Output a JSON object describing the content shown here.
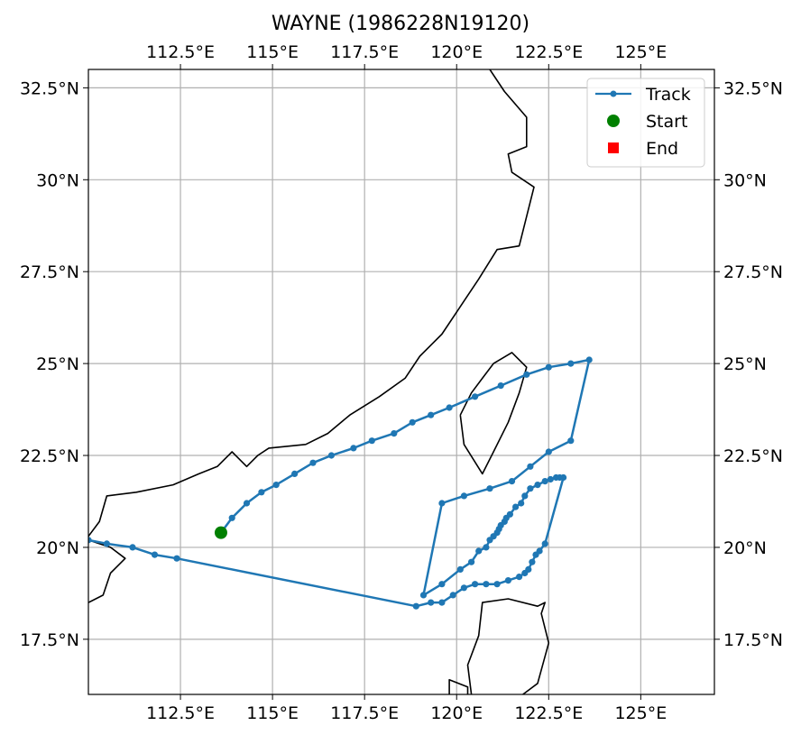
{
  "chart_data": {
    "type": "map-track",
    "title": "WAYNE (1986228N19120)",
    "xlim": [
      110,
      127
    ],
    "ylim": [
      16,
      33
    ],
    "xticks": [
      {
        "value": 112.5,
        "label": "112.5°E"
      },
      {
        "value": 115,
        "label": "115°E"
      },
      {
        "value": 117.5,
        "label": "117.5°E"
      },
      {
        "value": 120,
        "label": "120°E"
      },
      {
        "value": 122.5,
        "label": "122.5°E"
      },
      {
        "value": 125,
        "label": "125°E"
      }
    ],
    "yticks": [
      {
        "value": 17.5,
        "label": "17.5°N"
      },
      {
        "value": 20,
        "label": "20°N"
      },
      {
        "value": 22.5,
        "label": "22.5°N"
      },
      {
        "value": 25,
        "label": "25°N"
      },
      {
        "value": 27.5,
        "label": "27.5°N"
      },
      {
        "value": 30,
        "label": "30°N"
      },
      {
        "value": 32.5,
        "label": "32.5°N"
      }
    ],
    "grid": true,
    "legend": {
      "placement": "top-right",
      "entries": [
        {
          "label": "Track",
          "marker": "line-dot",
          "color": "#1f77b4"
        },
        {
          "label": "Start",
          "marker": "circle",
          "color": "#008000"
        },
        {
          "label": "End",
          "marker": "square",
          "color": "#ff0000"
        }
      ]
    },
    "track_color": "#1f77b4",
    "start": {
      "lon": 113.6,
      "lat": 20.4,
      "color": "#008000"
    },
    "track": [
      [
        113.6,
        20.4
      ],
      [
        113.9,
        20.8
      ],
      [
        114.3,
        21.2
      ],
      [
        114.7,
        21.5
      ],
      [
        115.1,
        21.7
      ],
      [
        115.6,
        22.0
      ],
      [
        116.1,
        22.3
      ],
      [
        116.6,
        22.5
      ],
      [
        117.2,
        22.7
      ],
      [
        117.7,
        22.9
      ],
      [
        118.3,
        23.1
      ],
      [
        118.8,
        23.4
      ],
      [
        119.3,
        23.6
      ],
      [
        119.8,
        23.8
      ],
      [
        120.5,
        24.1
      ],
      [
        121.2,
        24.4
      ],
      [
        121.9,
        24.7
      ],
      [
        122.5,
        24.9
      ],
      [
        123.1,
        25.0
      ],
      [
        123.6,
        25.1
      ],
      [
        123.1,
        22.9
      ],
      [
        122.5,
        22.6
      ],
      [
        122.0,
        22.2
      ],
      [
        121.5,
        21.8
      ],
      [
        120.9,
        21.6
      ],
      [
        120.2,
        21.4
      ],
      [
        119.6,
        21.2
      ],
      [
        119.1,
        18.7
      ],
      [
        119.6,
        19.0
      ],
      [
        120.1,
        19.4
      ],
      [
        120.4,
        19.6
      ],
      [
        120.6,
        19.9
      ],
      [
        120.8,
        20.0
      ],
      [
        120.9,
        20.2
      ],
      [
        121.0,
        20.3
      ],
      [
        121.1,
        20.4
      ],
      [
        121.15,
        20.5
      ],
      [
        121.2,
        20.6
      ],
      [
        121.3,
        20.7
      ],
      [
        121.35,
        20.8
      ],
      [
        121.45,
        20.9
      ],
      [
        121.6,
        21.1
      ],
      [
        121.75,
        21.2
      ],
      [
        121.85,
        21.4
      ],
      [
        122.0,
        21.6
      ],
      [
        122.2,
        21.7
      ],
      [
        122.4,
        21.8
      ],
      [
        122.55,
        21.85
      ],
      [
        122.7,
        21.9
      ],
      [
        122.8,
        21.9
      ],
      [
        122.9,
        21.9
      ],
      [
        122.4,
        20.1
      ],
      [
        122.25,
        19.9
      ],
      [
        122.15,
        19.8
      ],
      [
        122.05,
        19.6
      ],
      [
        121.95,
        19.4
      ],
      [
        121.85,
        19.3
      ],
      [
        121.7,
        19.2
      ],
      [
        121.4,
        19.1
      ],
      [
        121.1,
        19.0
      ],
      [
        120.8,
        19.0
      ],
      [
        120.5,
        19.0
      ],
      [
        120.2,
        18.9
      ],
      [
        119.9,
        18.7
      ],
      [
        119.6,
        18.5
      ],
      [
        119.3,
        18.5
      ],
      [
        118.9,
        18.4
      ],
      [
        112.4,
        19.7
      ],
      [
        111.8,
        19.8
      ],
      [
        111.2,
        20.0
      ],
      [
        110.5,
        20.1
      ],
      [
        110.0,
        20.2
      ]
    ],
    "coastlines": [
      [
        [
          120.9,
          33.0
        ],
        [
          121.3,
          32.4
        ],
        [
          121.9,
          31.7
        ],
        [
          121.9,
          30.9
        ],
        [
          121.4,
          30.7
        ],
        [
          121.5,
          30.2
        ],
        [
          122.1,
          29.8
        ],
        [
          121.9,
          29.0
        ],
        [
          121.7,
          28.2
        ],
        [
          121.1,
          28.1
        ],
        [
          120.6,
          27.3
        ],
        [
          120.2,
          26.7
        ],
        [
          119.6,
          25.8
        ],
        [
          119.0,
          25.2
        ],
        [
          118.6,
          24.6
        ],
        [
          117.9,
          24.1
        ],
        [
          117.1,
          23.6
        ],
        [
          116.5,
          23.1
        ],
        [
          115.9,
          22.8
        ],
        [
          114.9,
          22.7
        ],
        [
          114.6,
          22.5
        ],
        [
          114.3,
          22.2
        ],
        [
          113.9,
          22.6
        ],
        [
          113.5,
          22.2
        ],
        [
          113.0,
          22.0
        ],
        [
          112.3,
          21.7
        ],
        [
          111.3,
          21.5
        ],
        [
          110.5,
          21.4
        ],
        [
          110.3,
          20.7
        ],
        [
          110.0,
          20.3
        ]
      ],
      [
        [
          120.1,
          23.6
        ],
        [
          120.2,
          22.8
        ],
        [
          120.7,
          22.0
        ],
        [
          121.0,
          22.6
        ],
        [
          121.4,
          23.4
        ],
        [
          121.7,
          24.2
        ],
        [
          121.9,
          24.9
        ],
        [
          121.5,
          25.3
        ],
        [
          121.0,
          25.0
        ],
        [
          120.7,
          24.6
        ],
        [
          120.4,
          24.2
        ],
        [
          120.1,
          23.6
        ]
      ],
      [
        [
          110.0,
          18.5
        ],
        [
          110.4,
          18.7
        ],
        [
          110.6,
          19.3
        ],
        [
          111.0,
          19.7
        ],
        [
          110.6,
          20.0
        ],
        [
          110.3,
          20.1
        ],
        [
          110.0,
          20.2
        ]
      ],
      [
        [
          120.4,
          16.0
        ],
        [
          120.3,
          16.8
        ],
        [
          120.6,
          17.6
        ],
        [
          120.7,
          18.5
        ],
        [
          121.4,
          18.6
        ],
        [
          122.2,
          18.4
        ],
        [
          122.4,
          18.5
        ],
        [
          122.3,
          18.2
        ],
        [
          122.5,
          17.4
        ],
        [
          122.2,
          16.3
        ],
        [
          121.8,
          16.0
        ]
      ],
      [
        [
          119.8,
          16.0
        ],
        [
          119.8,
          16.4
        ],
        [
          120.3,
          16.2
        ],
        [
          120.3,
          16.0
        ]
      ]
    ]
  }
}
